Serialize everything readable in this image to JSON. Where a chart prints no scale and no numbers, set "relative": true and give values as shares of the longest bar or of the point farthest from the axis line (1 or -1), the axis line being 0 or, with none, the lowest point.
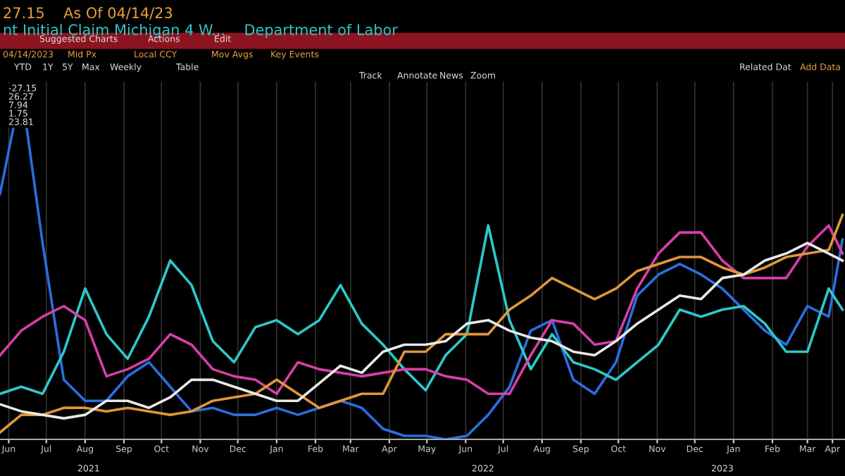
{
  "chart_data": {
    "type": "line",
    "relative": true,
    "title": "27.15    As Of 04/14/23",
    "subtitle": "nt Initial Claim Michigan 4 W...    Department of Labor",
    "annotations": [
      "Suggested Charts",
      "Actions",
      "Edit",
      "04/14/2023",
      "Mid Px",
      "Local CCY",
      "Mov Avgs",
      "Key Events",
      "YTD",
      "1Y",
      "5Y",
      "Max",
      "Weekly",
      "Table",
      "Track",
      "Annotate",
      "News",
      "Zoom",
      "Related Dat",
      "Add Data",
      "-27.15",
      "26.27",
      "7.94",
      "1.75",
      "23.81",
      "2021",
      "2022",
      "2023"
    ],
    "x": [
      "2021-06-08",
      "2021-06-25",
      "2021-07-12",
      "2021-07-29",
      "2021-08-15",
      "2021-09-01",
      "2021-09-18",
      "2021-10-05",
      "2021-10-22",
      "2021-11-08",
      "2021-11-25",
      "2021-12-12",
      "2021-12-29",
      "2022-01-15",
      "2022-02-01",
      "2022-02-18",
      "2022-03-07",
      "2022-03-24",
      "2022-04-10",
      "2022-04-27",
      "2022-05-14",
      "2022-05-30",
      "2022-06-16",
      "2022-07-03",
      "2022-07-20",
      "2022-08-06",
      "2022-08-23",
      "2022-09-09",
      "2022-09-26",
      "2022-10-13",
      "2022-10-30",
      "2022-11-16",
      "2022-12-03",
      "2022-12-20",
      "2023-01-06",
      "2023-01-23",
      "2023-02-09",
      "2023-02-26",
      "2023-03-15",
      "2023-04-01",
      "2023-04-12"
    ],
    "xlim": [
      "2021-06-08",
      "2023-04-14"
    ],
    "xticks": [
      {
        "value": "2021-06-15",
        "label": "Jun"
      },
      {
        "value": "2021-07-15",
        "label": "Jul"
      },
      {
        "value": "2021-08-15",
        "label": "Aug"
      },
      {
        "value": "2021-09-15",
        "label": "Sep"
      },
      {
        "value": "2021-10-15",
        "label": "Oct"
      },
      {
        "value": "2021-11-15",
        "label": "Nov"
      },
      {
        "value": "2021-12-15",
        "label": "Dec"
      },
      {
        "value": "2022-01-15",
        "label": "Jan"
      },
      {
        "value": "2022-02-15",
        "label": "Feb"
      },
      {
        "value": "2022-03-15",
        "label": "Mar"
      },
      {
        "value": "2022-04-15",
        "label": "Apr"
      },
      {
        "value": "2022-05-15",
        "label": "May"
      },
      {
        "value": "2022-06-15",
        "label": "Jun"
      },
      {
        "value": "2022-07-15",
        "label": "Jul"
      },
      {
        "value": "2022-08-15",
        "label": "Aug"
      },
      {
        "value": "2022-09-15",
        "label": "Sep"
      },
      {
        "value": "2022-10-15",
        "label": "Oct"
      },
      {
        "value": "2022-11-15",
        "label": "Nov"
      },
      {
        "value": "2022-12-15",
        "label": "Dec"
      },
      {
        "value": "2023-01-15",
        "label": "Jan"
      },
      {
        "value": "2023-02-15",
        "label": "Feb"
      },
      {
        "value": "2023-03-15",
        "label": "Mar"
      },
      {
        "value": "2023-04-04",
        "label": "Apr"
      }
    ],
    "grid": "x",
    "series": [
      {
        "color": "#2a6ee0",
        "values": [
          0.7,
          1,
          0.56,
          0.17,
          0.11,
          0.11,
          0.18,
          0.22,
          0.15,
          0.08,
          0.09,
          0.07,
          0.07,
          0.09,
          0.07,
          0.09,
          0.11,
          0.09,
          0.03,
          0.01,
          0.01,
          0,
          0.01,
          0.07,
          0.15,
          0.31,
          0.34,
          0.17,
          0.13,
          0.22,
          0.41,
          0.47,
          0.5,
          0.47,
          0.43,
          0.37,
          0.31,
          0.27,
          0.38,
          0.35,
          0.57
        ]
      },
      {
        "color": "#2ec8c8",
        "values": [
          0.13,
          0.15,
          0.13,
          0.25,
          0.43,
          0.3,
          0.23,
          0.35,
          0.51,
          0.44,
          0.28,
          0.22,
          0.32,
          0.34,
          0.3,
          0.34,
          0.44,
          0.33,
          0.27,
          0.2,
          0.14,
          0.24,
          0.3,
          0.61,
          0.34,
          0.2,
          0.3,
          0.22,
          0.2,
          0.17,
          0.22,
          0.27,
          0.37,
          0.35,
          0.37,
          0.38,
          0.33,
          0.25,
          0.25,
          0.43,
          0.37
        ]
      },
      {
        "color": "#d83ea8",
        "values": [
          0.24,
          0.31,
          0.35,
          0.38,
          0.34,
          0.18,
          0.2,
          0.23,
          0.3,
          0.27,
          0.2,
          0.18,
          0.17,
          0.13,
          0.22,
          0.2,
          0.19,
          0.18,
          0.19,
          0.2,
          0.2,
          0.18,
          0.17,
          0.13,
          0.13,
          0.24,
          0.34,
          0.33,
          0.27,
          0.28,
          0.43,
          0.53,
          0.59,
          0.59,
          0.51,
          0.46,
          0.46,
          0.46,
          0.55,
          0.61,
          0.53
        ]
      },
      {
        "color": "#e0963a",
        "values": [
          0.02,
          0.07,
          0.07,
          0.09,
          0.09,
          0.08,
          0.09,
          0.08,
          0.07,
          0.08,
          0.11,
          0.12,
          0.13,
          0.17,
          0.13,
          0.09,
          0.11,
          0.13,
          0.13,
          0.25,
          0.25,
          0.3,
          0.3,
          0.3,
          0.37,
          0.41,
          0.46,
          0.43,
          0.4,
          0.43,
          0.48,
          0.5,
          0.52,
          0.52,
          0.49,
          0.47,
          0.49,
          0.52,
          0.53,
          0.54,
          0.64
        ]
      },
      {
        "color": "#e8e8e8",
        "values": [
          0.1,
          0.08,
          0.07,
          0.06,
          0.07,
          0.11,
          0.11,
          0.09,
          0.12,
          0.17,
          0.17,
          0.15,
          0.13,
          0.11,
          0.11,
          0.16,
          0.21,
          0.19,
          0.25,
          0.27,
          0.27,
          0.28,
          0.33,
          0.34,
          0.31,
          0.29,
          0.28,
          0.25,
          0.24,
          0.28,
          0.33,
          0.37,
          0.41,
          0.4,
          0.46,
          0.47,
          0.51,
          0.53,
          0.56,
          0.53,
          0.51
        ]
      }
    ]
  }
}
